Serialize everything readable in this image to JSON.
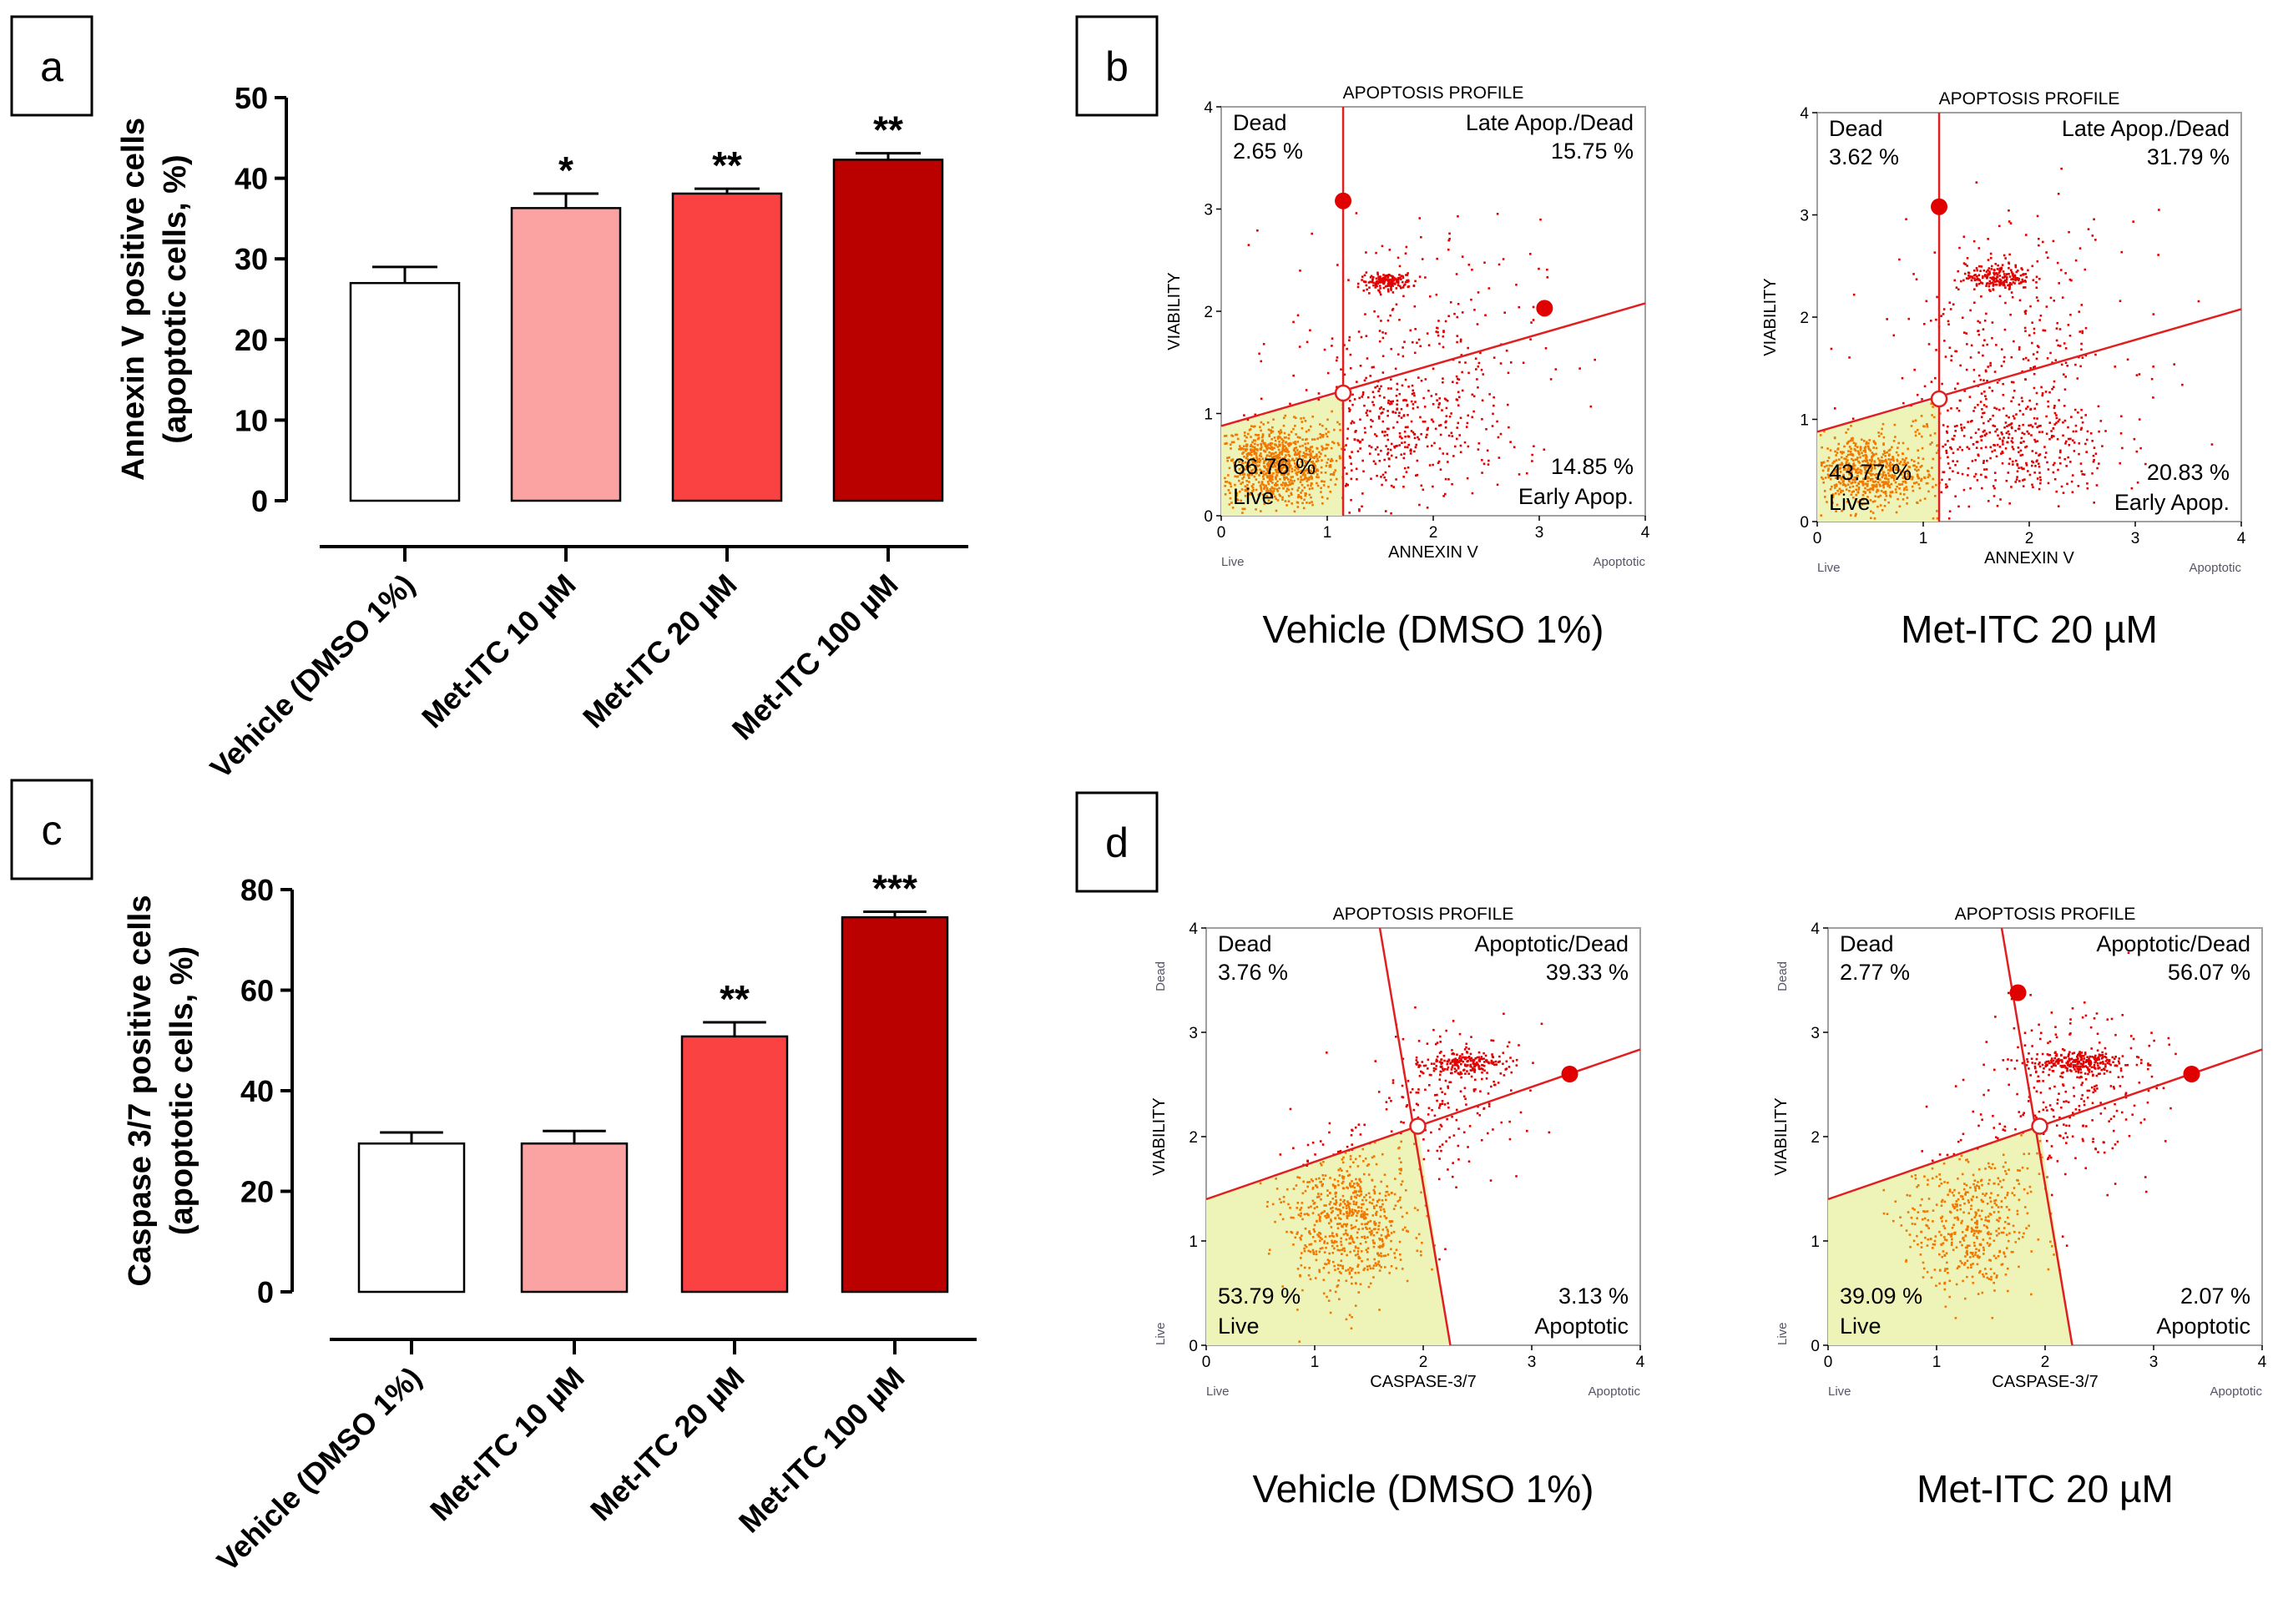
{
  "panels": [
    {
      "label": "a"
    },
    {
      "label": "b"
    },
    {
      "label": "c"
    },
    {
      "label": "d"
    }
  ],
  "chart_data": [
    {
      "panel": "a",
      "type": "bar",
      "title": "",
      "ylabel_line1": "Annexin V positive cells",
      "ylabel_line2": "(apoptotic cells, %)",
      "xlabel": "",
      "ylim": [
        0,
        50
      ],
      "yticks": [
        0,
        10,
        20,
        30,
        40,
        50
      ],
      "categories": [
        "Vehicle (DMSO 1%)",
        "Met-ITC 10 µM",
        "Met-ITC 20 µM",
        "Met-ITC 100 µM"
      ],
      "values": [
        27,
        36.3,
        38.1,
        42.3
      ],
      "errors": [
        2.0,
        1.8,
        0.6,
        0.8
      ],
      "significance": [
        "",
        "*",
        "**",
        "**"
      ],
      "colors": [
        "#ffffff",
        "#fba3a3",
        "#fb4242",
        "#bb0000"
      ]
    },
    {
      "panel": "b",
      "type": "scatter",
      "plots": [
        {
          "title": "APOPTOSIS PROFILE",
          "xlabel": "ANNEXIN V",
          "ylabel": "VIABILITY",
          "xlim": [
            0,
            4
          ],
          "ylim": [
            0,
            4
          ],
          "x_end_labels": [
            "Live",
            "Apoptotic"
          ],
          "caption": "Vehicle (DMSO 1%)",
          "quadrants": [
            {
              "name": "Dead",
              "pct": "2.65 %"
            },
            {
              "name": "Late Apop./Dead",
              "pct": "15.75 %"
            },
            {
              "name": "Live",
              "pct": "66.76 %"
            },
            {
              "name": "Early Apop.",
              "pct": "14.85 %"
            }
          ],
          "gate_center": [
            1.15,
            1.2
          ],
          "handles": [
            [
              1.15,
              3.08
            ],
            [
              3.05,
              2.03
            ]
          ],
          "clusters": [
            {
              "cx": 0.5,
              "cy": 0.5,
              "sx": 0.3,
              "sy": 0.2,
              "n": 900
            },
            {
              "cx": 1.55,
              "cy": 2.3,
              "sx": 0.12,
              "sy": 0.04,
              "n": 160
            },
            {
              "cx": 1.7,
              "cy": 0.8,
              "sx": 0.45,
              "sy": 0.35,
              "n": 350
            },
            {
              "cx": 1.8,
              "cy": 1.7,
              "sx": 0.6,
              "sy": 0.6,
              "n": 220
            }
          ]
        },
        {
          "title": "APOPTOSIS PROFILE",
          "xlabel": "ANNEXIN V",
          "ylabel": "VIABILITY",
          "xlim": [
            0,
            4
          ],
          "ylim": [
            0,
            4
          ],
          "x_end_labels": [
            "Live",
            "Apoptotic"
          ],
          "caption": "Met-ITC 20 µM",
          "quadrants": [
            {
              "name": "Dead",
              "pct": "3.62 %"
            },
            {
              "name": "Late Apop./Dead",
              "pct": "31.79 %"
            },
            {
              "name": "Live",
              "pct": "43.77 %"
            },
            {
              "name": "Early Apop.",
              "pct": "20.83 %"
            }
          ],
          "gate_center": [
            1.15,
            1.2
          ],
          "handles": [
            [
              1.15,
              3.08
            ]
          ],
          "clusters": [
            {
              "cx": 0.45,
              "cy": 0.5,
              "sx": 0.28,
              "sy": 0.18,
              "n": 650
            },
            {
              "cx": 1.7,
              "cy": 2.4,
              "sx": 0.15,
              "sy": 0.06,
              "n": 200
            },
            {
              "cx": 1.8,
              "cy": 0.75,
              "sx": 0.5,
              "sy": 0.3,
              "n": 420
            },
            {
              "cx": 1.8,
              "cy": 1.8,
              "sx": 0.6,
              "sy": 0.6,
              "n": 300
            }
          ]
        }
      ]
    },
    {
      "panel": "c",
      "type": "bar",
      "title": "",
      "ylabel_line1": "Caspase 3/7 positive cells",
      "ylabel_line2": "(apoptotic cells, %)",
      "xlabel": "",
      "ylim": [
        0,
        80
      ],
      "yticks": [
        0,
        20,
        40,
        60,
        80
      ],
      "categories": [
        "Vehicle (DMSO 1%)",
        "Met-ITC 10 µM",
        "Met-ITC 20 µM",
        "Met-ITC 100 µM"
      ],
      "values": [
        29.5,
        29.5,
        50.8,
        74.5
      ],
      "errors": [
        2.2,
        2.5,
        2.8,
        1.1
      ],
      "significance": [
        "",
        "",
        "**",
        "***"
      ],
      "colors": [
        "#ffffff",
        "#fba3a3",
        "#fb4242",
        "#bb0000"
      ]
    },
    {
      "panel": "d",
      "type": "scatter",
      "plots": [
        {
          "title": "APOPTOSIS PROFILE",
          "xlabel": "CASPASE-3/7",
          "ylabel": "VIABILITY",
          "xlim": [
            0,
            4
          ],
          "ylim": [
            0,
            4
          ],
          "x_end_labels": [
            "Live",
            "Apoptotic"
          ],
          "y_end_labels": [
            "Live",
            "Dead"
          ],
          "caption": "Vehicle (DMSO 1%)",
          "quadrants": [
            {
              "name": "Dead",
              "pct": "3.76 %"
            },
            {
              "name": "Apoptotic/Dead",
              "pct": "39.33 %"
            },
            {
              "name": "Live",
              "pct": "53.79 %"
            },
            {
              "name": "Apoptotic",
              "pct": "3.13 %"
            }
          ],
          "gate_center": [
            1.95,
            2.1
          ],
          "handles": [
            [
              3.35,
              2.6
            ]
          ],
          "clusters": [
            {
              "cx": 1.3,
              "cy": 1.2,
              "sx": 0.3,
              "sy": 0.35,
              "n": 700
            },
            {
              "cx": 2.4,
              "cy": 2.72,
              "sx": 0.18,
              "sy": 0.05,
              "n": 180
            },
            {
              "cx": 2.2,
              "cy": 2.4,
              "sx": 0.35,
              "sy": 0.35,
              "n": 200
            }
          ]
        },
        {
          "title": "APOPTOSIS PROFILE",
          "xlabel": "CASPASE-3/7",
          "ylabel": "VIABILITY",
          "xlim": [
            0,
            4
          ],
          "ylim": [
            0,
            4
          ],
          "x_end_labels": [
            "Live",
            "Apoptotic"
          ],
          "y_end_labels": [
            "Live",
            "Dead"
          ],
          "caption": "Met-ITC 20 µM",
          "quadrants": [
            {
              "name": "Dead",
              "pct": "2.77 %"
            },
            {
              "name": "Apoptotic/Dead",
              "pct": "56.07 %"
            },
            {
              "name": "Live",
              "pct": "39.09 %"
            },
            {
              "name": "Apoptotic",
              "pct": "2.07 %"
            }
          ],
          "gate_center": [
            1.95,
            2.1
          ],
          "handles": [
            [
              1.75,
              3.38
            ],
            [
              3.35,
              2.6
            ]
          ],
          "clusters": [
            {
              "cx": 1.3,
              "cy": 1.2,
              "sx": 0.3,
              "sy": 0.35,
              "n": 480
            },
            {
              "cx": 2.3,
              "cy": 2.72,
              "sx": 0.22,
              "sy": 0.05,
              "n": 240
            },
            {
              "cx": 2.2,
              "cy": 2.45,
              "sx": 0.4,
              "sy": 0.4,
              "n": 280
            }
          ]
        }
      ]
    }
  ]
}
